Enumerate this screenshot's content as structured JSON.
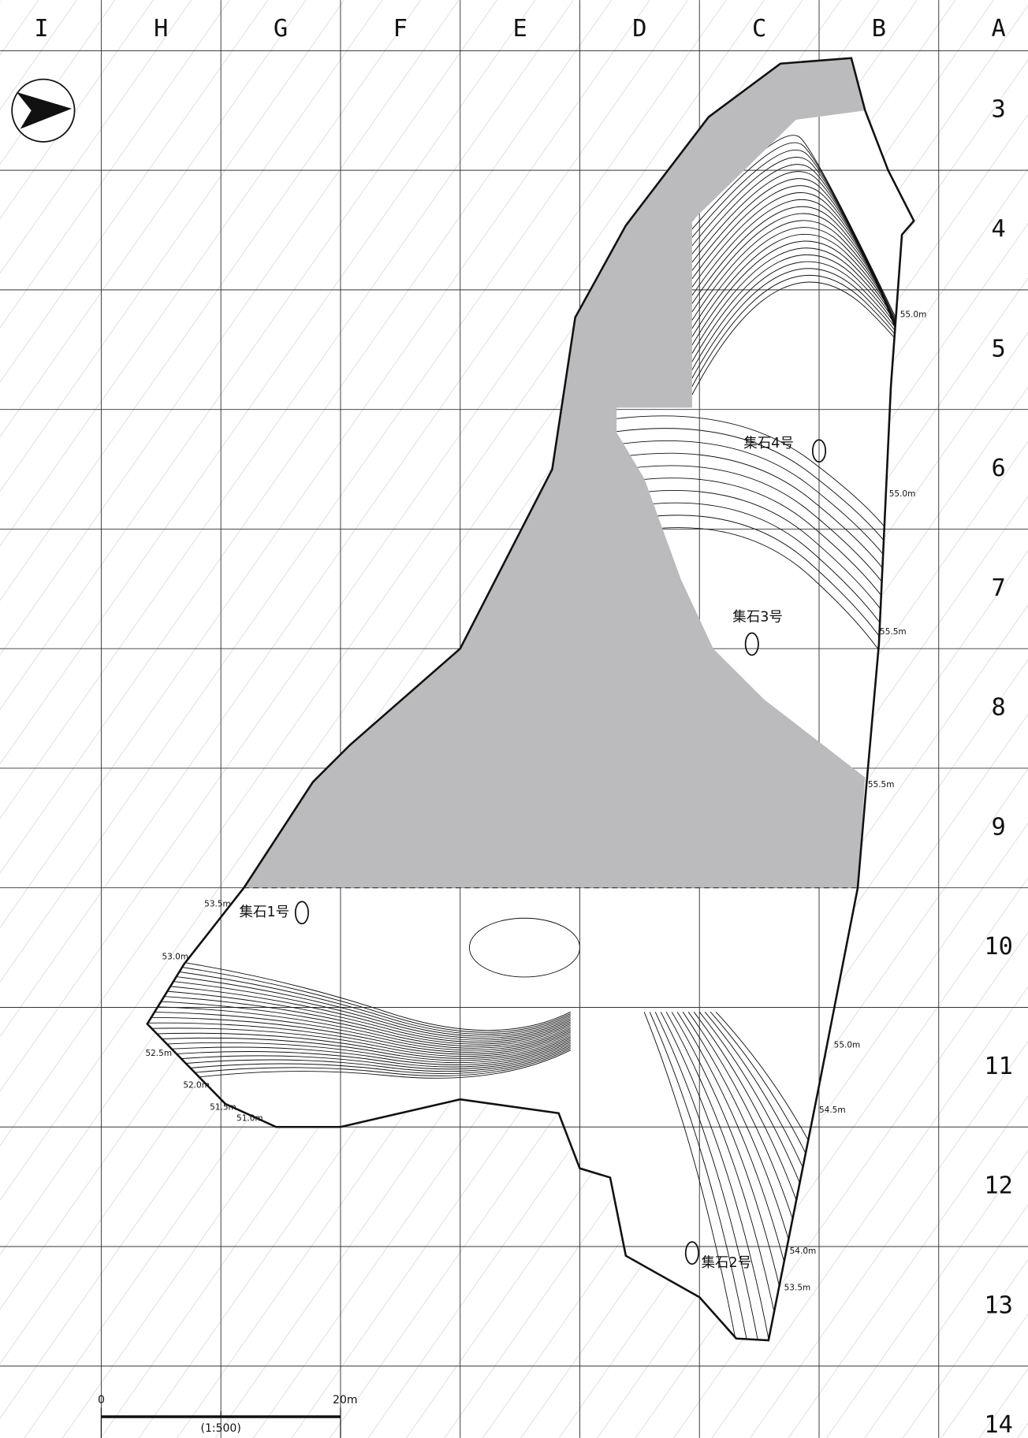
{
  "column_labels": [
    "I",
    "H",
    "G",
    "F",
    "E",
    "D",
    "C",
    "B",
    "A"
  ],
  "row_labels": [
    "3",
    "4",
    "5",
    "6",
    "7",
    "8",
    "9",
    "10",
    "11",
    "12",
    "13",
    "14"
  ],
  "contour_labels": [
    "55.0m",
    "55.0m",
    "55.5m",
    "55.5m",
    "53.5m",
    "53.0m",
    "52.5m",
    "52.0m",
    "51.5m",
    "51.0m",
    "55.0m",
    "54.5m",
    "54.0m",
    "53.5m"
  ],
  "features": [
    "集石4号",
    "集石3号",
    "集石1号",
    "集石2号"
  ],
  "scale": {
    "start": "0",
    "end": "20m",
    "ratio": "(1:500)"
  }
}
